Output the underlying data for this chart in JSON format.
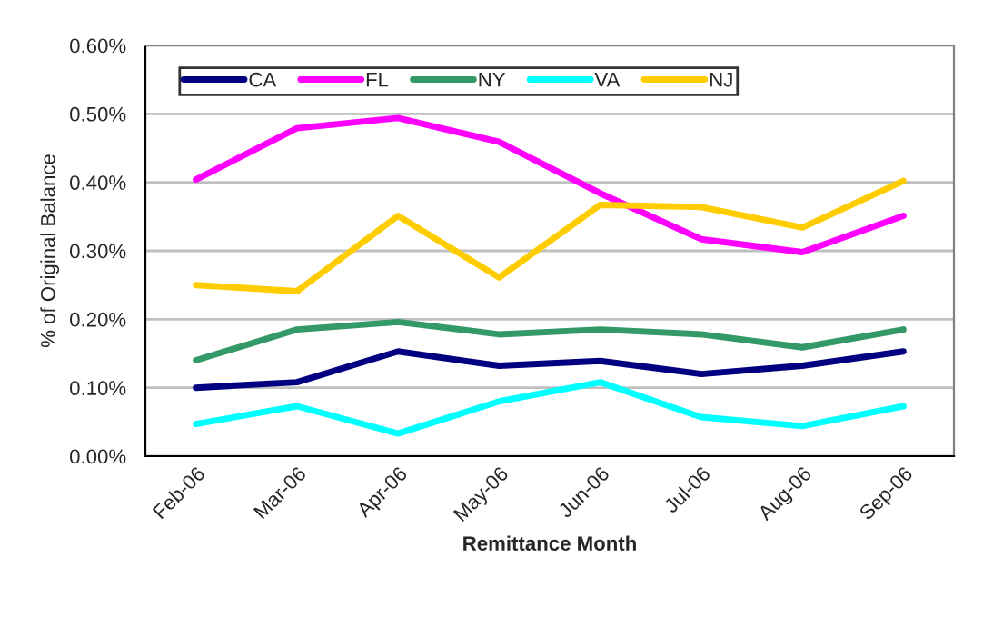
{
  "chart_data": {
    "type": "line",
    "xlabel": "Remittance Month",
    "ylabel": "% of Original Balance",
    "categories": [
      "Feb-06",
      "Mar-06",
      "Apr-06",
      "May-06",
      "Jun-06",
      "Jul-06",
      "Aug-06",
      "Sep-06"
    ],
    "series": [
      {
        "name": "CA",
        "color": "#000080",
        "values": [
          0.1,
          0.108,
          0.153,
          0.132,
          0.139,
          0.12,
          0.132,
          0.153
        ]
      },
      {
        "name": "FL",
        "color": "#ff00ff",
        "values": [
          0.404,
          0.479,
          0.494,
          0.459,
          0.384,
          0.317,
          0.298,
          0.351
        ]
      },
      {
        "name": "NY",
        "color": "#339966",
        "values": [
          0.14,
          0.185,
          0.196,
          0.178,
          0.185,
          0.178,
          0.159,
          0.185
        ]
      },
      {
        "name": "VA",
        "color": "#00ffff",
        "values": [
          0.047,
          0.073,
          0.033,
          0.08,
          0.108,
          0.057,
          0.044,
          0.073
        ]
      },
      {
        "name": "NJ",
        "color": "#ffcc00",
        "values": [
          0.25,
          0.241,
          0.351,
          0.261,
          0.367,
          0.364,
          0.334,
          0.402
        ]
      }
    ],
    "ylim": [
      0,
      0.6
    ],
    "yticks": [
      {
        "value": 0,
        "label": "0.00%"
      },
      {
        "value": 0.1,
        "label": "0.10%"
      },
      {
        "value": 0.2,
        "label": "0.20%"
      },
      {
        "value": 0.3,
        "label": "0.30%"
      },
      {
        "value": 0.4,
        "label": "0.40%"
      },
      {
        "value": 0.5,
        "label": "0.50%"
      },
      {
        "value": 0.6,
        "label": "0.60%"
      }
    ],
    "grid": "y",
    "legend": "top left",
    "marker": "none",
    "line_style": "solid"
  }
}
